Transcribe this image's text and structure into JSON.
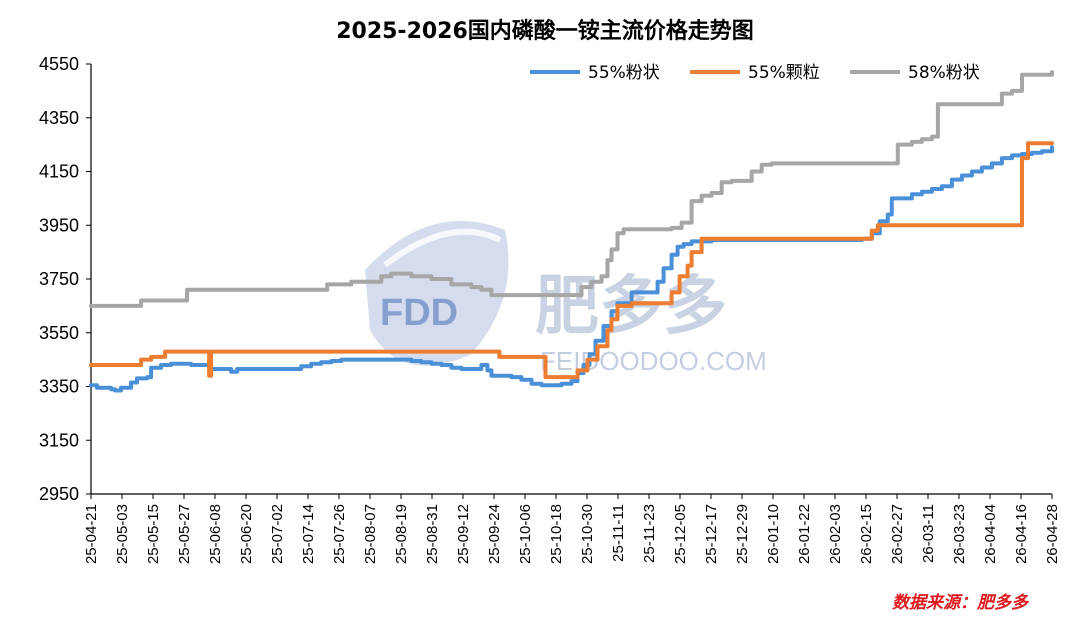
{
  "chart_data": {
    "type": "line",
    "title": "2025-2026国内磷酸一铵主流价格走势图",
    "xlabel": "",
    "ylabel": "",
    "ylim": [
      2950,
      4550
    ],
    "yticks": [
      2950,
      3150,
      3350,
      3550,
      3750,
      3950,
      4150,
      4350,
      4550
    ],
    "categories": [
      "25-04-21",
      "25-05-03",
      "25-05-15",
      "25-05-27",
      "25-06-08",
      "25-06-20",
      "25-07-02",
      "25-07-14",
      "25-07-26",
      "25-08-07",
      "25-08-19",
      "25-08-31",
      "25-09-12",
      "25-09-24",
      "25-10-06",
      "25-10-18",
      "25-10-30",
      "25-11-11",
      "25-11-23",
      "25-12-05",
      "25-12-17",
      "25-12-29",
      "26-01-10",
      "26-01-22",
      "26-02-03",
      "26-02-15",
      "26-02-27",
      "26-03-11",
      "26-03-23",
      "26-04-04",
      "26-04-16",
      "26-04-28"
    ],
    "legend_position": "top-right",
    "series": [
      {
        "name": "55%粉状",
        "color": "#4a90d9",
        "points": [
          [
            0,
            3355
          ],
          [
            0.3,
            3345
          ],
          [
            1,
            3340
          ],
          [
            1.2,
            3335
          ],
          [
            1.5,
            3345
          ],
          [
            2,
            3365
          ],
          [
            2.3,
            3380
          ],
          [
            2.8,
            3385
          ],
          [
            3,
            3420
          ],
          [
            3.5,
            3430
          ],
          [
            4,
            3435
          ],
          [
            5,
            3430
          ],
          [
            6,
            3415
          ],
          [
            7,
            3405
          ],
          [
            7.3,
            3415
          ],
          [
            8,
            3415
          ],
          [
            9,
            3415
          ],
          [
            10,
            3415
          ],
          [
            10.5,
            3425
          ],
          [
            11,
            3435
          ],
          [
            11.5,
            3440
          ],
          [
            12,
            3445
          ],
          [
            12.5,
            3450
          ],
          [
            13,
            3450
          ],
          [
            14,
            3450
          ],
          [
            15,
            3450
          ],
          [
            16,
            3445
          ],
          [
            16.5,
            3440
          ],
          [
            17,
            3435
          ],
          [
            17.5,
            3430
          ],
          [
            18,
            3420
          ],
          [
            18.5,
            3415
          ],
          [
            19,
            3415
          ],
          [
            19.5,
            3430
          ],
          [
            19.8,
            3410
          ],
          [
            20,
            3390
          ],
          [
            21,
            3385
          ],
          [
            21.5,
            3375
          ],
          [
            22,
            3360
          ],
          [
            22.5,
            3355
          ],
          [
            23,
            3355
          ],
          [
            23.5,
            3360
          ],
          [
            24,
            3370
          ],
          [
            24.3,
            3400
          ],
          [
            24.6,
            3430
          ],
          [
            24.9,
            3470
          ],
          [
            25.2,
            3520
          ],
          [
            25.6,
            3575
          ],
          [
            26,
            3630
          ],
          [
            26.3,
            3660
          ],
          [
            27,
            3700
          ],
          [
            28,
            3700
          ],
          [
            28.3,
            3740
          ],
          [
            28.6,
            3790
          ],
          [
            29,
            3840
          ],
          [
            29.3,
            3870
          ],
          [
            29.6,
            3880
          ],
          [
            30,
            3890
          ],
          [
            31,
            3895
          ],
          [
            32,
            3895
          ],
          [
            33,
            3895
          ],
          [
            34,
            3895
          ],
          [
            35,
            3895
          ],
          [
            36,
            3895
          ],
          [
            37,
            3895
          ],
          [
            38,
            3895
          ],
          [
            38.5,
            3900
          ],
          [
            39,
            3920
          ],
          [
            39.4,
            3965
          ],
          [
            39.8,
            3990
          ],
          [
            40,
            4050
          ],
          [
            41,
            4065
          ],
          [
            41.5,
            4075
          ],
          [
            42,
            4085
          ],
          [
            42.5,
            4095
          ],
          [
            43,
            4120
          ],
          [
            43.5,
            4135
          ],
          [
            44,
            4150
          ],
          [
            44.5,
            4165
          ],
          [
            45,
            4180
          ],
          [
            45.5,
            4200
          ],
          [
            46,
            4210
          ],
          [
            46.5,
            4215
          ],
          [
            47,
            4220
          ],
          [
            47.5,
            4225
          ],
          [
            48,
            4240
          ]
        ]
      },
      {
        "name": "55%颗粒",
        "color": "#ed7d31",
        "points": [
          [
            0,
            3430
          ],
          [
            1,
            3430
          ],
          [
            2,
            3430
          ],
          [
            2.5,
            3450
          ],
          [
            3,
            3460
          ],
          [
            3.7,
            3480
          ],
          [
            4,
            3480
          ],
          [
            5,
            3480
          ],
          [
            5.8,
            3480
          ],
          [
            5.9,
            3390
          ],
          [
            6,
            3480
          ],
          [
            7,
            3480
          ],
          [
            8,
            3480
          ],
          [
            9,
            3480
          ],
          [
            10,
            3480
          ],
          [
            11,
            3480
          ],
          [
            12,
            3480
          ],
          [
            13,
            3480
          ],
          [
            14,
            3480
          ],
          [
            15,
            3480
          ],
          [
            16,
            3480
          ],
          [
            17,
            3480
          ],
          [
            18,
            3480
          ],
          [
            19,
            3480
          ],
          [
            20,
            3480
          ],
          [
            20.4,
            3460
          ],
          [
            21,
            3460
          ],
          [
            22,
            3460
          ],
          [
            22.5,
            3460
          ],
          [
            22.7,
            3385
          ],
          [
            23,
            3385
          ],
          [
            24,
            3385
          ],
          [
            24.3,
            3410
          ],
          [
            24.8,
            3450
          ],
          [
            25.3,
            3500
          ],
          [
            25.8,
            3560
          ],
          [
            26,
            3600
          ],
          [
            26.3,
            3650
          ],
          [
            27,
            3660
          ],
          [
            28,
            3660
          ],
          [
            29,
            3700
          ],
          [
            29.4,
            3760
          ],
          [
            29.8,
            3800
          ],
          [
            30,
            3850
          ],
          [
            30.5,
            3900
          ],
          [
            31,
            3900
          ],
          [
            32,
            3900
          ],
          [
            33,
            3900
          ],
          [
            34,
            3900
          ],
          [
            35,
            3900
          ],
          [
            36,
            3900
          ],
          [
            37,
            3900
          ],
          [
            38,
            3900
          ],
          [
            38.8,
            3900
          ],
          [
            39,
            3930
          ],
          [
            39.3,
            3950
          ],
          [
            40,
            3950
          ],
          [
            41,
            3950
          ],
          [
            42,
            3950
          ],
          [
            43,
            3950
          ],
          [
            44,
            3950
          ],
          [
            45,
            3950
          ],
          [
            46,
            3950
          ],
          [
            46.3,
            3950
          ],
          [
            46.5,
            4200
          ],
          [
            46.8,
            4255
          ],
          [
            47,
            4255
          ],
          [
            48,
            4255
          ]
        ]
      },
      {
        "name": "58%粉状",
        "color": "#a6a6a6",
        "points": [
          [
            0,
            3650
          ],
          [
            1,
            3650
          ],
          [
            2,
            3650
          ],
          [
            2.5,
            3670
          ],
          [
            3,
            3670
          ],
          [
            4,
            3670
          ],
          [
            4.8,
            3710
          ],
          [
            5,
            3710
          ],
          [
            6,
            3710
          ],
          [
            7,
            3710
          ],
          [
            8,
            3710
          ],
          [
            9,
            3710
          ],
          [
            10,
            3710
          ],
          [
            11,
            3710
          ],
          [
            11.8,
            3730
          ],
          [
            12,
            3730
          ],
          [
            13,
            3740
          ],
          [
            14,
            3740
          ],
          [
            14.5,
            3760
          ],
          [
            15,
            3770
          ],
          [
            16,
            3760
          ],
          [
            17,
            3750
          ],
          [
            18,
            3730
          ],
          [
            19,
            3720
          ],
          [
            19.5,
            3710
          ],
          [
            20,
            3690
          ],
          [
            21,
            3690
          ],
          [
            22,
            3690
          ],
          [
            23,
            3690
          ],
          [
            24,
            3690
          ],
          [
            24.5,
            3720
          ],
          [
            25,
            3740
          ],
          [
            25.5,
            3760
          ],
          [
            25.8,
            3820
          ],
          [
            26,
            3860
          ],
          [
            26.3,
            3920
          ],
          [
            26.6,
            3935
          ],
          [
            27,
            3935
          ],
          [
            28,
            3935
          ],
          [
            29,
            3940
          ],
          [
            29.5,
            3960
          ],
          [
            30,
            4040
          ],
          [
            30.5,
            4060
          ],
          [
            31,
            4070
          ],
          [
            31.5,
            4110
          ],
          [
            32,
            4115
          ],
          [
            33,
            4150
          ],
          [
            33.5,
            4175
          ],
          [
            34,
            4180
          ],
          [
            35,
            4180
          ],
          [
            36,
            4180
          ],
          [
            37,
            4180
          ],
          [
            38,
            4180
          ],
          [
            39,
            4180
          ],
          [
            40,
            4180
          ],
          [
            40.3,
            4250
          ],
          [
            41,
            4260
          ],
          [
            41.5,
            4270
          ],
          [
            42,
            4280
          ],
          [
            42.3,
            4400
          ],
          [
            43,
            4400
          ],
          [
            44,
            4400
          ],
          [
            45,
            4400
          ],
          [
            45.5,
            4440
          ],
          [
            46,
            4450
          ],
          [
            46.5,
            4510
          ],
          [
            47,
            4510
          ],
          [
            47.5,
            4510
          ],
          [
            48,
            4520
          ]
        ]
      }
    ]
  },
  "watermark": {
    "logo_text": "FDD",
    "brand": "肥多多",
    "url": "FEIDOODOO.COM"
  },
  "source": "数据来源：肥多多"
}
